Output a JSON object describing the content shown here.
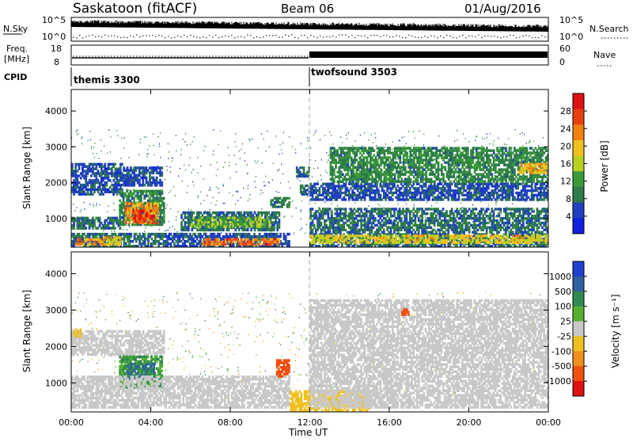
{
  "header": {
    "station": "Saskatoon (fitACF)",
    "beam": "Beam 06",
    "date": "01/Aug/2016"
  },
  "summary_panels": {
    "nsky": {
      "left_label": "N.Sky",
      "left_ticks": [
        "10^5",
        "10^0"
      ],
      "right_ticks": [
        "10^5",
        "10^0"
      ],
      "right_label": "N.Search"
    },
    "freq": {
      "left_label_line1": "Freq.",
      "left_label_line2": "[MHz]",
      "left_ticks": [
        "18",
        "8"
      ],
      "right_ticks": [
        "60",
        "0"
      ],
      "right_label": "Nave"
    },
    "cpid": {
      "label": "CPID",
      "modes": [
        {
          "name": "themis 3300",
          "start_hour": 0
        },
        {
          "name": "twofsound 3503",
          "start_hour": 12
        }
      ]
    }
  },
  "axes": {
    "ylabel": "Slant Range [km]",
    "yticks": [
      "1000",
      "2000",
      "3000",
      "4000"
    ],
    "xticks": [
      "00:00",
      "04:00",
      "08:00",
      "12:00",
      "16:00",
      "20:00",
      "00:00"
    ],
    "xlabel": "Time UT"
  },
  "colorbars": {
    "power": {
      "label": "Power [dB]",
      "ticks": [
        "4",
        "8",
        "12",
        "16",
        "20",
        "24",
        "28"
      ],
      "colors": [
        "#1020e0",
        "#2040c0",
        "#2e7a4a",
        "#3a9a3a",
        "#b8d020",
        "#f0c020",
        "#f08010",
        "#e84010",
        "#e01010"
      ]
    },
    "velocity": {
      "label": "Velocity [m s⁻¹]",
      "ticks": [
        "1000",
        "500",
        "100",
        "25",
        "-25",
        "-100",
        "-500",
        "-1000"
      ],
      "colors": [
        "#2040d0",
        "#3060a0",
        "#2e8a50",
        "#55b030",
        "#c8c8c8",
        "#f0c020",
        "#f09020",
        "#f05010",
        "#e01010"
      ]
    }
  },
  "chart_data": [
    {
      "type": "heatmap",
      "title": "Power",
      "x": "Time UT (hours)",
      "xlim": [
        0,
        24
      ],
      "ylim": [
        200,
        4600
      ],
      "colorbar_label": "Power [dB]",
      "colorbar_range": [
        0,
        32
      ],
      "regions": [
        {
          "t0": 0.0,
          "t1": 2.6,
          "r0": 1650,
          "r1": 2550,
          "value": 6
        },
        {
          "t0": 2.6,
          "t1": 4.6,
          "r0": 1900,
          "r1": 2450,
          "value": 6
        },
        {
          "t0": 2.4,
          "t1": 4.7,
          "r0": 800,
          "r1": 1800,
          "value": 10
        },
        {
          "t0": 2.7,
          "t1": 4.4,
          "r0": 850,
          "r1": 1450,
          "value": 22
        },
        {
          "t0": 3.1,
          "t1": 4.2,
          "r0": 900,
          "r1": 1250,
          "value": 28
        },
        {
          "t0": 0.0,
          "t1": 2.5,
          "r0": 700,
          "r1": 1050,
          "value": 8
        },
        {
          "t0": 0.0,
          "t1": 4.7,
          "r0": 200,
          "r1": 600,
          "value": 8
        },
        {
          "t0": 0.2,
          "t1": 1.6,
          "r0": 250,
          "r1": 450,
          "value": 22
        },
        {
          "t0": 1.6,
          "t1": 2.5,
          "r0": 250,
          "r1": 500,
          "value": 18
        },
        {
          "t0": 5.5,
          "t1": 10.5,
          "r0": 650,
          "r1": 1200,
          "value": 8
        },
        {
          "t0": 6.0,
          "t1": 10.0,
          "r0": 750,
          "r1": 1050,
          "value": 14
        },
        {
          "t0": 4.7,
          "t1": 11.0,
          "r0": 200,
          "r1": 600,
          "value": 6
        },
        {
          "t0": 6.5,
          "t1": 10.5,
          "r0": 250,
          "r1": 450,
          "value": 24
        },
        {
          "t0": 10.0,
          "t1": 11.0,
          "r0": 1300,
          "r1": 1600,
          "value": 10
        },
        {
          "t0": 11.3,
          "t1": 12.0,
          "r0": 2150,
          "r1": 2450,
          "value": 8
        },
        {
          "t0": 11.5,
          "t1": 12.0,
          "r0": 1650,
          "r1": 1950,
          "value": 8
        },
        {
          "t0": 12.0,
          "t1": 24.0,
          "r0": 200,
          "r1": 1300,
          "value": 8
        },
        {
          "t0": 12.0,
          "t1": 24.0,
          "r0": 300,
          "r1": 550,
          "value": 18
        },
        {
          "t0": 12.0,
          "t1": 24.0,
          "r0": 1500,
          "r1": 2000,
          "value": 6
        },
        {
          "t0": 13.0,
          "t1": 24.0,
          "r0": 2000,
          "r1": 3000,
          "value": 10
        },
        {
          "t0": 22.5,
          "t1": 24.0,
          "r0": 2250,
          "r1": 2550,
          "value": 20
        }
      ]
    },
    {
      "type": "heatmap",
      "title": "Velocity",
      "x": "Time UT (hours)",
      "xlim": [
        0,
        24
      ],
      "ylim": [
        200,
        4600
      ],
      "colorbar_label": "Velocity [m s⁻¹]",
      "colorbar_range": [
        -1000,
        1000
      ],
      "regions": [
        {
          "t0": 0.0,
          "t1": 4.7,
          "r0": 1750,
          "r1": 2450,
          "value": 0
        },
        {
          "t0": 2.4,
          "t1": 4.6,
          "r0": 850,
          "r1": 1750,
          "value": 100
        },
        {
          "t0": 2.8,
          "t1": 4.2,
          "r0": 1100,
          "r1": 1550,
          "value": 500
        },
        {
          "t0": 0.0,
          "t1": 11.0,
          "r0": 300,
          "r1": 1200,
          "value": 0
        },
        {
          "t0": 10.3,
          "t1": 11.0,
          "r0": 1150,
          "r1": 1650,
          "value": -600
        },
        {
          "t0": 11.0,
          "t1": 15.0,
          "r0": 200,
          "r1": 800,
          "value": -80
        },
        {
          "t0": 12.0,
          "t1": 24.0,
          "r0": 300,
          "r1": 3300,
          "value": 0
        },
        {
          "t0": 16.6,
          "t1": 17.0,
          "r0": 2850,
          "r1": 3050,
          "value": -600
        },
        {
          "t0": 0.1,
          "t1": 0.5,
          "r0": 2250,
          "r1": 2500,
          "value": -80
        }
      ]
    }
  ]
}
